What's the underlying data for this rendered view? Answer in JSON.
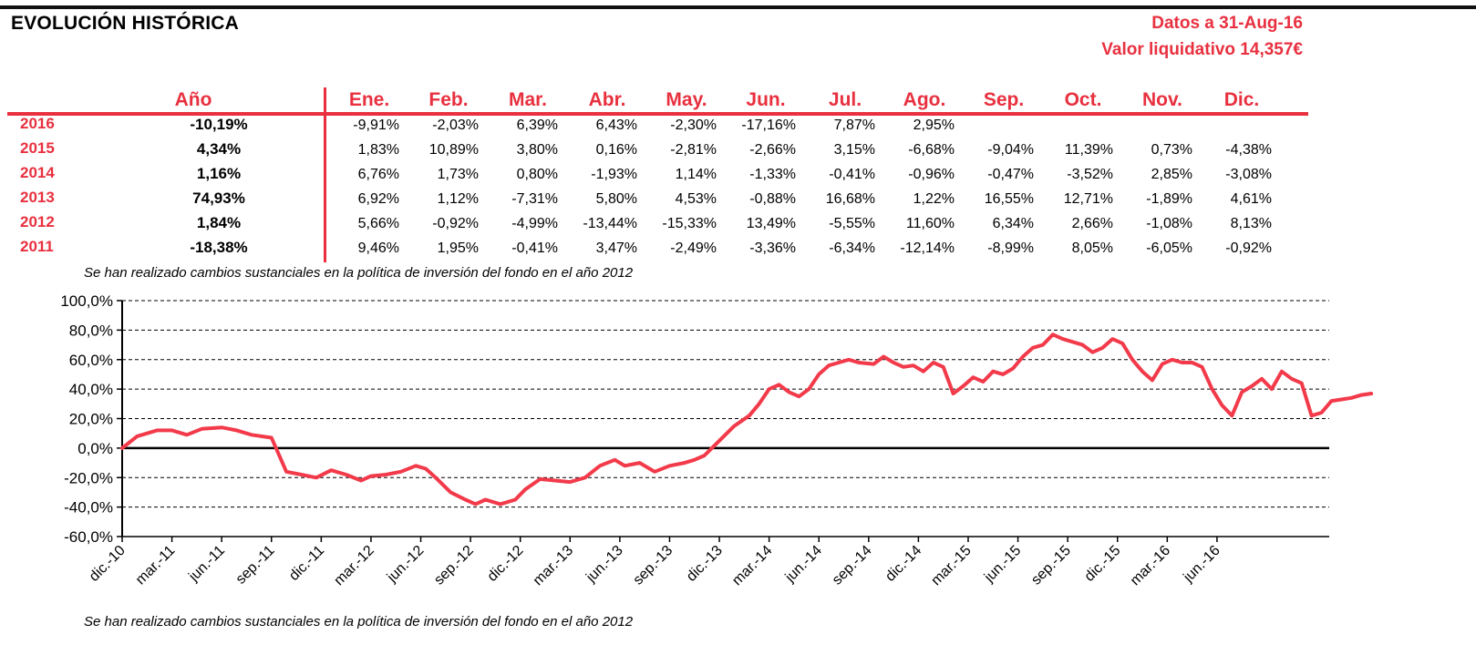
{
  "header": {
    "title": "EVOLUCIÓN HISTÓRICA",
    "date_line": "Datos a 31-Aug-16",
    "nav_line": "Valor liquidativo 14,357€"
  },
  "table": {
    "year_header": "Año",
    "months": [
      "Ene.",
      "Feb.",
      "Mar.",
      "Abr.",
      "May.",
      "Jun.",
      "Jul.",
      "Ago.",
      "Sep.",
      "Oct.",
      "Nov.",
      "Dic."
    ],
    "rows": [
      {
        "year": "2016",
        "annual": "-10,19%",
        "values": [
          "-9,91%",
          "-2,03%",
          "6,39%",
          "6,43%",
          "-2,30%",
          "-17,16%",
          "7,87%",
          "2,95%",
          "",
          "",
          "",
          ""
        ]
      },
      {
        "year": "2015",
        "annual": "4,34%",
        "values": [
          "1,83%",
          "10,89%",
          "3,80%",
          "0,16%",
          "-2,81%",
          "-2,66%",
          "3,15%",
          "-6,68%",
          "-9,04%",
          "11,39%",
          "0,73%",
          "-4,38%"
        ]
      },
      {
        "year": "2014",
        "annual": "1,16%",
        "values": [
          "6,76%",
          "1,73%",
          "0,80%",
          "-1,93%",
          "1,14%",
          "-1,33%",
          "-0,41%",
          "-0,96%",
          "-0,47%",
          "-3,52%",
          "2,85%",
          "-3,08%"
        ]
      },
      {
        "year": "2013",
        "annual": "74,93%",
        "values": [
          "6,92%",
          "1,12%",
          "-7,31%",
          "5,80%",
          "4,53%",
          "-0,88%",
          "16,68%",
          "1,22%",
          "16,55%",
          "12,71%",
          "-1,89%",
          "4,61%"
        ]
      },
      {
        "year": "2012",
        "annual": "1,84%",
        "values": [
          "5,66%",
          "-0,92%",
          "-4,99%",
          "-13,44%",
          "-15,33%",
          "13,49%",
          "-5,55%",
          "11,60%",
          "6,34%",
          "2,66%",
          "-1,08%",
          "8,13%"
        ]
      },
      {
        "year": "2011",
        "annual": "-18,38%",
        "values": [
          "9,46%",
          "1,95%",
          "-0,41%",
          "3,47%",
          "-2,49%",
          "-3,36%",
          "-6,34%",
          "-12,14%",
          "-8,99%",
          "8,05%",
          "-6,05%",
          "-0,92%"
        ]
      }
    ]
  },
  "notes": {
    "note_top": "Se han realizado cambios sustanciales en la política de inversión del fondo en el año 2012",
    "note_bottom": "Se han realizado cambios sustanciales en la política de inversión del fondo en el año 2012"
  },
  "chart_data": {
    "type": "line",
    "title": "",
    "xlabel": "",
    "ylabel": "",
    "ylim": [
      -60,
      100
    ],
    "yticks": [
      -60,
      -40,
      -20,
      0,
      20,
      40,
      60,
      80,
      100
    ],
    "ytick_labels": [
      "-60,0%",
      "-40,0%",
      "-20,0%",
      "0,0%",
      "20,0%",
      "40,0%",
      "60,0%",
      "80,0%",
      "100,0%"
    ],
    "xticks": [
      "dic.-10",
      "mar.-11",
      "jun.-11",
      "sep.-11",
      "dic.-11",
      "mar.-12",
      "jun.-12",
      "sep.-12",
      "dic.-12",
      "mar.-13",
      "jun.-13",
      "sep.-13",
      "dic.-13",
      "mar.-14",
      "jun.-14",
      "sep.-14",
      "dic.-14",
      "mar.-15",
      "jun.-15",
      "sep.-15",
      "dic.-15",
      "mar.-16",
      "jun.-16"
    ],
    "grid": "horizontal-dashed",
    "line_color": "#f23a4a",
    "series": [
      {
        "values": [
          [
            0,
            0
          ],
          [
            0.3,
            8
          ],
          [
            0.7,
            12
          ],
          [
            1,
            12
          ],
          [
            1.3,
            9
          ],
          [
            1.6,
            13
          ],
          [
            2,
            14
          ],
          [
            2.3,
            12
          ],
          [
            2.6,
            9
          ],
          [
            3,
            7
          ],
          [
            3.3,
            -16
          ],
          [
            3.6,
            -18
          ],
          [
            3.9,
            -20
          ],
          [
            4.2,
            -15
          ],
          [
            4.5,
            -18
          ],
          [
            4.8,
            -22
          ],
          [
            5,
            -19
          ],
          [
            5.3,
            -18
          ],
          [
            5.6,
            -16
          ],
          [
            5.9,
            -12
          ],
          [
            6.1,
            -14
          ],
          [
            6.3,
            -20
          ],
          [
            6.6,
            -30
          ],
          [
            6.9,
            -35
          ],
          [
            7.1,
            -38
          ],
          [
            7.3,
            -35
          ],
          [
            7.6,
            -38
          ],
          [
            7.9,
            -35
          ],
          [
            8.1,
            -28
          ],
          [
            8.4,
            -21
          ],
          [
            8.7,
            -22
          ],
          [
            9,
            -23
          ],
          [
            9.3,
            -20
          ],
          [
            9.6,
            -12
          ],
          [
            9.9,
            -8
          ],
          [
            10.1,
            -12
          ],
          [
            10.4,
            -10
          ],
          [
            10.7,
            -16
          ],
          [
            11,
            -12
          ],
          [
            11.3,
            -10
          ],
          [
            11.5,
            -8
          ],
          [
            11.7,
            -5
          ],
          [
            12,
            5
          ],
          [
            12.3,
            15
          ],
          [
            12.6,
            22
          ],
          [
            12.8,
            30
          ],
          [
            13,
            40
          ],
          [
            13.2,
            43
          ],
          [
            13.4,
            38
          ],
          [
            13.6,
            35
          ],
          [
            13.8,
            40
          ],
          [
            14,
            50
          ],
          [
            14.2,
            56
          ],
          [
            14.4,
            58
          ],
          [
            14.6,
            60
          ],
          [
            14.8,
            58
          ],
          [
            15.1,
            57
          ],
          [
            15.3,
            62
          ],
          [
            15.5,
            58
          ],
          [
            15.7,
            55
          ],
          [
            15.9,
            56
          ],
          [
            16.1,
            52
          ],
          [
            16.3,
            58
          ],
          [
            16.5,
            55
          ],
          [
            16.7,
            37
          ],
          [
            16.9,
            42
          ],
          [
            17.1,
            48
          ],
          [
            17.3,
            45
          ],
          [
            17.5,
            52
          ],
          [
            17.7,
            50
          ],
          [
            17.9,
            54
          ],
          [
            18.1,
            62
          ],
          [
            18.3,
            68
          ],
          [
            18.5,
            70
          ],
          [
            18.7,
            77
          ],
          [
            18.9,
            74
          ],
          [
            19.1,
            72
          ],
          [
            19.3,
            70
          ],
          [
            19.5,
            65
          ],
          [
            19.7,
            68
          ],
          [
            19.9,
            74
          ],
          [
            20.1,
            71
          ],
          [
            20.3,
            60
          ],
          [
            20.5,
            52
          ],
          [
            20.7,
            46
          ],
          [
            20.9,
            57
          ],
          [
            21.1,
            60
          ],
          [
            21.3,
            58
          ],
          [
            21.5,
            58
          ],
          [
            21.7,
            55
          ],
          [
            21.9,
            40
          ],
          [
            22.1,
            29
          ],
          [
            22.3,
            22
          ],
          [
            22.5,
            38
          ],
          [
            22.7,
            42
          ],
          [
            22.9,
            47
          ],
          [
            23.1,
            40
          ],
          [
            23.3,
            52
          ],
          [
            23.5,
            47
          ],
          [
            23.7,
            44
          ],
          [
            23.9,
            22
          ],
          [
            24.1,
            24
          ],
          [
            24.3,
            32
          ],
          [
            24.5,
            33
          ],
          [
            24.7,
            34
          ],
          [
            24.9,
            36
          ],
          [
            25.1,
            37
          ]
        ]
      }
    ]
  }
}
